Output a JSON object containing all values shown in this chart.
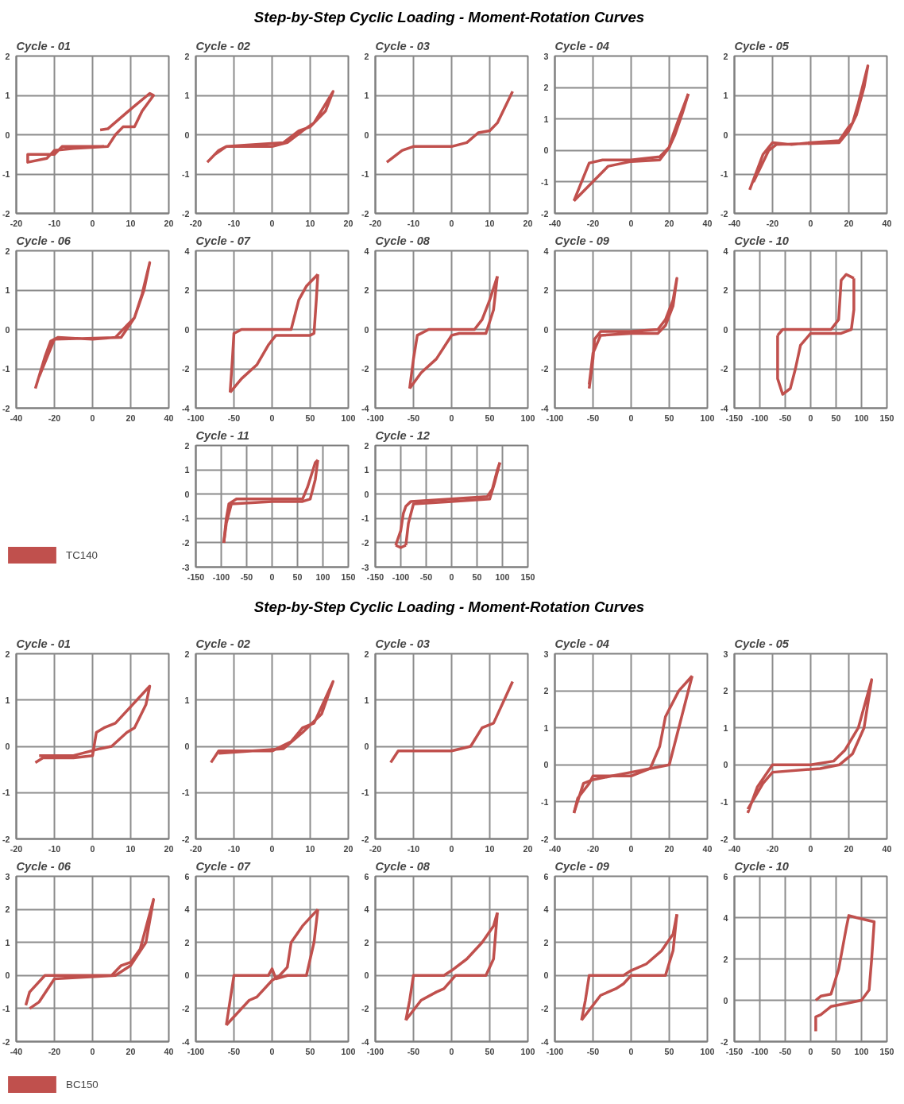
{
  "chart_data": [
    {
      "type": "other",
      "title": "Step-by-Step Cyclic Loading - Moment-Rotation Curves",
      "legend": "bottom left",
      "series": [
        {
          "name": "TC140",
          "color": "#c0504d"
        }
      ]
    },
    {
      "type": "line",
      "title": "Cycle - 01",
      "xlim": [
        -20,
        20
      ],
      "xticks": [
        -20,
        -10,
        0,
        10,
        20
      ],
      "ylim": [
        -2,
        2
      ],
      "yticks": [
        -2,
        -1,
        0,
        1,
        2
      ],
      "grid": true,
      "series": [
        {
          "color": "#c0504d",
          "x": [
            2,
            4,
            10,
            15,
            16,
            13,
            11,
            8,
            6,
            4,
            -5,
            -10,
            -12,
            -17,
            -17,
            -10,
            -8,
            0,
            3
          ],
          "values": [
            0.12,
            0.15,
            0.65,
            1.05,
            1.0,
            0.6,
            0.2,
            0.2,
            0,
            -0.3,
            -0.35,
            -0.4,
            -0.6,
            -0.7,
            -0.5,
            -0.5,
            -0.3,
            -0.3,
            -0.3
          ]
        }
      ]
    },
    {
      "type": "line",
      "title": "Cycle - 02",
      "xlim": [
        -20,
        20
      ],
      "xticks": [
        -20,
        -10,
        0,
        10,
        20
      ],
      "ylim": [
        -2,
        2
      ],
      "yticks": [
        -2,
        -1,
        0,
        1,
        2
      ],
      "grid": true,
      "series": [
        {
          "color": "#c0504d",
          "x": [
            -17,
            -14,
            -12,
            -5,
            0,
            4,
            8,
            11,
            16,
            14,
            10,
            7,
            3,
            -5,
            -12,
            -15
          ],
          "values": [
            -0.7,
            -0.4,
            -0.3,
            -0.3,
            -0.3,
            -0.2,
            0.1,
            0.3,
            1.1,
            0.6,
            0.2,
            0.1,
            -0.2,
            -0.25,
            -0.3,
            -0.5
          ]
        }
      ]
    },
    {
      "type": "line",
      "title": "Cycle - 03",
      "xlim": [
        -20,
        20
      ],
      "xticks": [
        -20,
        -10,
        0,
        10,
        20
      ],
      "ylim": [
        -2,
        2
      ],
      "yticks": [
        -2,
        -1,
        0,
        1,
        2
      ],
      "grid": true,
      "series": [
        {
          "color": "#c0504d",
          "x": [
            -17,
            -13,
            -10,
            0,
            4,
            7,
            10,
            12,
            16
          ],
          "values": [
            -0.7,
            -0.4,
            -0.3,
            -0.3,
            -0.2,
            0.05,
            0.1,
            0.3,
            1.1
          ]
        }
      ]
    },
    {
      "type": "line",
      "title": "Cycle - 04",
      "xlim": [
        -40,
        40
      ],
      "xticks": [
        -40,
        -20,
        0,
        20,
        40
      ],
      "ylim": [
        -2,
        3
      ],
      "yticks": [
        -2,
        -1,
        0,
        1,
        2,
        3
      ],
      "grid": true,
      "series": [
        {
          "color": "#c0504d",
          "x": [
            -30,
            -22,
            -15,
            0,
            15,
            20,
            22,
            25,
            30
          ],
          "values": [
            -1.6,
            -0.4,
            -0.3,
            -0.3,
            -0.2,
            0.1,
            0.5,
            1.0,
            1.8
          ]
        },
        {
          "color": "#c0504d",
          "x": [
            30,
            27,
            23,
            20,
            15,
            0,
            -12,
            -30
          ],
          "values": [
            1.8,
            1.2,
            0.5,
            0.1,
            -0.3,
            -0.35,
            -0.5,
            -1.6
          ]
        }
      ]
    },
    {
      "type": "line",
      "title": "Cycle - 05",
      "xlim": [
        -40,
        40
      ],
      "xticks": [
        -40,
        -20,
        0,
        20,
        40
      ],
      "ylim": [
        -2,
        2
      ],
      "yticks": [
        -2,
        -1,
        0,
        1,
        2
      ],
      "grid": true,
      "series": [
        {
          "color": "#c0504d",
          "x": [
            -32,
            -25,
            -20,
            -10,
            0,
            15,
            20,
            22,
            25,
            30,
            28,
            24,
            20,
            15,
            -18,
            -22,
            -30
          ],
          "values": [
            -1.4,
            -0.5,
            -0.2,
            -0.25,
            -0.2,
            -0.15,
            0.2,
            0.3,
            0.8,
            1.75,
            1.2,
            0.5,
            0.1,
            -0.2,
            -0.25,
            -0.4,
            -1.2
          ]
        }
      ]
    },
    {
      "type": "line",
      "title": "Cycle - 06",
      "xlim": [
        -40,
        40
      ],
      "xticks": [
        -40,
        -20,
        0,
        20,
        40
      ],
      "ylim": [
        -2,
        2
      ],
      "yticks": [
        -2,
        -1,
        0,
        1,
        2
      ],
      "grid": true,
      "series": [
        {
          "color": "#c0504d",
          "x": [
            -30,
            -25,
            -22,
            -18,
            0,
            12,
            18,
            22,
            26,
            30,
            27,
            22,
            15,
            -20,
            -28
          ],
          "values": [
            -1.5,
            -0.7,
            -0.3,
            -0.2,
            -0.25,
            -0.2,
            0.1,
            0.3,
            0.9,
            1.7,
            1.0,
            0.3,
            -0.2,
            -0.25,
            -1.2
          ]
        }
      ]
    },
    {
      "type": "line",
      "title": "Cycle - 07",
      "xlim": [
        -100,
        100
      ],
      "xticks": [
        -100,
        -50,
        0,
        50,
        100
      ],
      "ylim": [
        -4,
        4
      ],
      "yticks": [
        -4,
        -2,
        0,
        2,
        4
      ],
      "grid": true,
      "series": [
        {
          "color": "#c0504d",
          "x": [
            -55,
            -52,
            -50,
            -40,
            0,
            25,
            35,
            45,
            60
          ],
          "values": [
            -3.2,
            -1.5,
            -0.2,
            0,
            0,
            0,
            1.5,
            2.2,
            2.8
          ]
        },
        {
          "color": "#c0504d",
          "x": [
            60,
            58,
            55,
            50,
            5,
            -5,
            -20,
            -40,
            -55
          ],
          "values": [
            2.8,
            1.5,
            -0.2,
            -0.3,
            -0.3,
            -0.8,
            -1.8,
            -2.5,
            -3.2
          ]
        }
      ]
    },
    {
      "type": "line",
      "title": "Cycle - 08",
      "xlim": [
        -100,
        100
      ],
      "xticks": [
        -100,
        -50,
        0,
        50,
        100
      ],
      "ylim": [
        -4,
        4
      ],
      "yticks": [
        -4,
        -2,
        0,
        2,
        4
      ],
      "grid": true,
      "series": [
        {
          "color": "#c0504d",
          "x": [
            -55,
            -50,
            -45,
            -30,
            0,
            30,
            40,
            50,
            60
          ],
          "values": [
            -3.0,
            -1.5,
            -0.3,
            0,
            0,
            0,
            0.5,
            1.5,
            2.7
          ]
        },
        {
          "color": "#c0504d",
          "x": [
            60,
            55,
            45,
            10,
            0,
            -20,
            -40,
            -55
          ],
          "values": [
            2.7,
            1.0,
            -0.2,
            -0.2,
            -0.3,
            -1.5,
            -2.2,
            -3.0
          ]
        }
      ]
    },
    {
      "type": "line",
      "title": "Cycle - 09",
      "xlim": [
        -100,
        100
      ],
      "xticks": [
        -100,
        -50,
        0,
        50,
        100
      ],
      "ylim": [
        -4,
        4
      ],
      "yticks": [
        -4,
        -2,
        0,
        2,
        4
      ],
      "grid": true,
      "series": [
        {
          "color": "#c0504d",
          "x": [
            -55,
            -50,
            -48,
            -40,
            0,
            35,
            45,
            55,
            60,
            55,
            45,
            35,
            0,
            -40,
            -50,
            -55
          ],
          "values": [
            -3.0,
            -1.5,
            -0.5,
            -0.1,
            -0.1,
            0,
            0.5,
            1.5,
            2.6,
            1.2,
            0.2,
            -0.2,
            -0.2,
            -0.3,
            -1.2,
            -2.8
          ]
        }
      ]
    },
    {
      "type": "line",
      "title": "Cycle - 10",
      "xlim": [
        -150,
        150
      ],
      "xticks": [
        -150,
        -100,
        -50,
        0,
        50,
        100,
        150
      ],
      "ylim": [
        -4,
        4
      ],
      "yticks": [
        -4,
        -2,
        0,
        2,
        4
      ],
      "grid": true,
      "series": [
        {
          "color": "#c0504d",
          "x": [
            -65,
            -55,
            0,
            40,
            55,
            60,
            70,
            85
          ],
          "values": [
            -0.3,
            0,
            0,
            0,
            0.5,
            2.5,
            2.8,
            2.6
          ]
        },
        {
          "color": "#c0504d",
          "x": [
            85,
            85,
            80,
            60,
            20,
            0,
            -20,
            -30,
            -40,
            -55,
            -65,
            -65,
            -65
          ],
          "values": [
            2.6,
            1.0,
            0,
            -0.2,
            -0.2,
            -0.2,
            -0.8,
            -2.0,
            -3.0,
            -3.3,
            -2.5,
            -1.2,
            -0.3
          ]
        }
      ]
    },
    {
      "type": "line",
      "title": "Cycle - 11",
      "xlim": [
        -150,
        150
      ],
      "xticks": [
        -150,
        -100,
        -50,
        0,
        50,
        100,
        150
      ],
      "ylim": [
        -3,
        2
      ],
      "yticks": [
        -3,
        -2,
        -1,
        0,
        1,
        2
      ],
      "grid": true,
      "series": [
        {
          "color": "#c0504d",
          "x": [
            -95,
            -90,
            -85,
            -70,
            0,
            60,
            70,
            85,
            90
          ],
          "values": [
            -2.0,
            -1.0,
            -0.4,
            -0.2,
            -0.2,
            -0.2,
            0.3,
            1.3,
            1.4
          ]
        },
        {
          "color": "#c0504d",
          "x": [
            90,
            85,
            75,
            60,
            0,
            -80,
            -90,
            -95
          ],
          "values": [
            1.4,
            0.6,
            -0.2,
            -0.3,
            -0.3,
            -0.4,
            -1.2,
            -2.0
          ]
        }
      ]
    },
    {
      "type": "line",
      "title": "Cycle - 12",
      "xlim": [
        -150,
        150
      ],
      "xticks": [
        -150,
        -100,
        -50,
        0,
        50,
        100,
        150
      ],
      "ylim": [
        -3,
        2
      ],
      "yticks": [
        -3,
        -2,
        -1,
        0,
        1,
        2
      ],
      "grid": true,
      "series": [
        {
          "color": "#c0504d",
          "x": [
            -110,
            -100,
            -95,
            -90,
            -80,
            0,
            70,
            80,
            90,
            95
          ],
          "values": [
            -2.1,
            -1.5,
            -0.8,
            -0.5,
            -0.3,
            -0.2,
            -0.1,
            0.2,
            1.0,
            1.3
          ]
        },
        {
          "color": "#c0504d",
          "x": [
            95,
            85,
            75,
            0,
            -75,
            -85,
            -90
          ],
          "values": [
            1.3,
            0.5,
            -0.2,
            -0.3,
            -0.4,
            -1.2,
            -2.1
          ]
        },
        {
          "color": "#c0504d",
          "x": [
            -90,
            -100,
            -110
          ],
          "values": [
            -2.1,
            -2.2,
            -2.1
          ]
        }
      ]
    },
    {
      "type": "other",
      "title": "Step-by-Step Cyclic Loading - Moment-Rotation Curves",
      "legend": "bottom left",
      "series": [
        {
          "name": "BC150",
          "color": "#c0504d"
        }
      ]
    },
    {
      "type": "line",
      "title": "Cycle - 01",
      "xlim": [
        -20,
        20
      ],
      "xticks": [
        -20,
        -10,
        0,
        10,
        20
      ],
      "ylim": [
        -2,
        2
      ],
      "yticks": [
        -2,
        -1,
        0,
        1,
        2
      ],
      "grid": true,
      "series": [
        {
          "color": "#c0504d",
          "x": [
            -15,
            -13,
            -5,
            0,
            1,
            3,
            6,
            15,
            14,
            11,
            9,
            5,
            2,
            -5,
            -14
          ],
          "values": [
            -0.35,
            -0.25,
            -0.25,
            -0.2,
            0.3,
            0.4,
            0.5,
            1.3,
            0.9,
            0.4,
            0.3,
            0,
            -0.05,
            -0.2,
            -0.2
          ]
        }
      ]
    },
    {
      "type": "line",
      "title": "Cycle - 02",
      "xlim": [
        -20,
        20
      ],
      "xticks": [
        -20,
        -10,
        0,
        10,
        20
      ],
      "ylim": [
        -2,
        2
      ],
      "yticks": [
        -2,
        -1,
        0,
        1,
        2
      ],
      "grid": true,
      "series": [
        {
          "color": "#c0504d",
          "x": [
            -16,
            -14,
            0,
            5,
            8,
            11,
            16,
            13,
            8,
            3,
            -14
          ],
          "values": [
            -0.35,
            -0.1,
            -0.1,
            0.1,
            0.4,
            0.5,
            1.4,
            0.7,
            0.3,
            -0.05,
            -0.15
          ]
        }
      ]
    },
    {
      "type": "line",
      "title": "Cycle - 03",
      "xlim": [
        -20,
        20
      ],
      "xticks": [
        -20,
        -10,
        0,
        10,
        20
      ],
      "ylim": [
        -2,
        2
      ],
      "yticks": [
        -2,
        -1,
        0,
        1,
        2
      ],
      "grid": true,
      "series": [
        {
          "color": "#c0504d",
          "x": [
            -16,
            -14,
            0,
            5,
            8,
            11,
            16
          ],
          "values": [
            -0.35,
            -0.1,
            -0.1,
            0,
            0.4,
            0.5,
            1.4
          ]
        }
      ]
    },
    {
      "type": "line",
      "title": "Cycle - 04",
      "xlim": [
        -40,
        40
      ],
      "xticks": [
        -40,
        -20,
        0,
        20,
        40
      ],
      "ylim": [
        -2,
        3
      ],
      "yticks": [
        -2,
        -1,
        0,
        1,
        2,
        3
      ],
      "grid": true,
      "series": [
        {
          "color": "#c0504d",
          "x": [
            -30,
            -28,
            -22,
            -20,
            0,
            10,
            15,
            18,
            25,
            32
          ],
          "values": [
            -1.3,
            -0.9,
            -0.5,
            -0.3,
            -0.3,
            -0.1,
            0.5,
            1.3,
            2.0,
            2.4
          ]
        },
        {
          "color": "#c0504d",
          "x": [
            32,
            25,
            20,
            10,
            0,
            -10,
            -20,
            -25,
            -30
          ],
          "values": [
            2.4,
            1.0,
            0,
            -0.1,
            -0.2,
            -0.3,
            -0.4,
            -0.5,
            -1.3
          ]
        }
      ]
    },
    {
      "type": "line",
      "title": "Cycle - 05",
      "xlim": [
        -40,
        40
      ],
      "xticks": [
        -40,
        -20,
        0,
        20,
        40
      ],
      "ylim": [
        -2,
        3
      ],
      "yticks": [
        -2,
        -1,
        0,
        1,
        2,
        3
      ],
      "grid": true,
      "series": [
        {
          "color": "#c0504d",
          "x": [
            -33,
            -28,
            -20,
            0,
            12,
            18,
            25,
            32,
            28,
            22,
            15,
            5,
            -20,
            -25,
            -33
          ],
          "values": [
            -1.3,
            -0.6,
            0,
            0,
            0.1,
            0.4,
            1.0,
            2.3,
            1.0,
            0.3,
            0,
            -0.1,
            -0.2,
            -0.5,
            -1.2
          ]
        }
      ]
    },
    {
      "type": "line",
      "title": "Cycle - 06",
      "xlim": [
        -40,
        40
      ],
      "xticks": [
        -40,
        -20,
        0,
        20,
        40
      ],
      "ylim": [
        -2,
        3
      ],
      "yticks": [
        -2,
        -1,
        0,
        1,
        2,
        3
      ],
      "grid": true,
      "series": [
        {
          "color": "#c0504d",
          "x": [
            -35,
            -33,
            -25,
            0,
            10,
            15,
            20,
            25,
            32,
            28,
            20,
            12,
            -20,
            -28,
            -33
          ],
          "values": [
            -0.9,
            -0.5,
            0,
            0,
            0,
            0.3,
            0.4,
            0.8,
            2.3,
            1.0,
            0.3,
            0,
            -0.1,
            -0.8,
            -1.0
          ]
        }
      ]
    },
    {
      "type": "line",
      "title": "Cycle - 07",
      "xlim": [
        -100,
        100
      ],
      "xticks": [
        -100,
        -50,
        0,
        50,
        100
      ],
      "ylim": [
        -4,
        6
      ],
      "yticks": [
        -4,
        -2,
        0,
        2,
        4,
        6
      ],
      "grid": true,
      "series": [
        {
          "color": "#c0504d",
          "x": [
            -60,
            -50,
            -30,
            -20,
            0,
            10,
            20,
            25,
            40,
            60
          ],
          "values": [
            -3.0,
            -2.5,
            -1.5,
            -1.3,
            -0.3,
            0,
            0.5,
            2,
            3,
            4
          ]
        },
        {
          "color": "#c0504d",
          "x": [
            60,
            55,
            45,
            20,
            5,
            0,
            -5,
            -50,
            -55,
            -60
          ],
          "values": [
            4,
            2,
            0,
            0,
            -0.2,
            0.4,
            0,
            0,
            -1.5,
            -3.0
          ]
        }
      ]
    },
    {
      "type": "line",
      "title": "Cycle - 08",
      "xlim": [
        -100,
        100
      ],
      "xticks": [
        -100,
        -50,
        0,
        50,
        100
      ],
      "ylim": [
        -4,
        6
      ],
      "yticks": [
        -4,
        -2,
        0,
        2,
        4,
        6
      ],
      "grid": true,
      "series": [
        {
          "color": "#c0504d",
          "x": [
            -60,
            -55,
            -50,
            -10,
            0,
            20,
            40,
            55,
            60
          ],
          "values": [
            -2.7,
            -1.5,
            0,
            0,
            0.3,
            1.0,
            2.0,
            3.0,
            3.8
          ]
        },
        {
          "color": "#c0504d",
          "x": [
            60,
            55,
            45,
            5,
            -10,
            -20,
            -40,
            -60
          ],
          "values": [
            3.8,
            1.0,
            0,
            0,
            -0.8,
            -1.0,
            -1.5,
            -2.7
          ]
        }
      ]
    },
    {
      "type": "line",
      "title": "Cycle - 09",
      "xlim": [
        -100,
        100
      ],
      "xticks": [
        -100,
        -50,
        0,
        50,
        100
      ],
      "ylim": [
        -4,
        6
      ],
      "yticks": [
        -4,
        -2,
        0,
        2,
        4,
        6
      ],
      "grid": true,
      "series": [
        {
          "color": "#c0504d",
          "x": [
            -65,
            -60,
            -55,
            -10,
            0,
            20,
            40,
            55,
            60
          ],
          "values": [
            -2.7,
            -1.5,
            0,
            0,
            0.3,
            0.7,
            1.5,
            2.5,
            3.7
          ]
        },
        {
          "color": "#c0504d",
          "x": [
            60,
            55,
            45,
            0,
            -10,
            -20,
            -40,
            -65
          ],
          "values": [
            3.7,
            1.5,
            0,
            0,
            -0.5,
            -0.8,
            -1.2,
            -2.7
          ]
        }
      ]
    },
    {
      "type": "line",
      "title": "Cycle - 10",
      "xlim": [
        -150,
        150
      ],
      "xticks": [
        -150,
        -100,
        -50,
        0,
        50,
        100,
        150
      ],
      "ylim": [
        -2,
        6
      ],
      "yticks": [
        -2,
        0,
        2,
        4,
        6
      ],
      "grid": true,
      "series": [
        {
          "color": "#c0504d",
          "x": [
            10,
            10,
            20,
            40,
            60,
            100,
            115,
            120,
            125,
            90,
            75,
            70,
            55,
            40,
            20,
            10
          ],
          "values": [
            -1.5,
            -0.8,
            -0.7,
            -0.3,
            -0.2,
            0,
            0.5,
            2,
            3.8,
            4.0,
            4.1,
            3.5,
            1.5,
            0.3,
            0.2,
            0
          ]
        }
      ]
    }
  ]
}
